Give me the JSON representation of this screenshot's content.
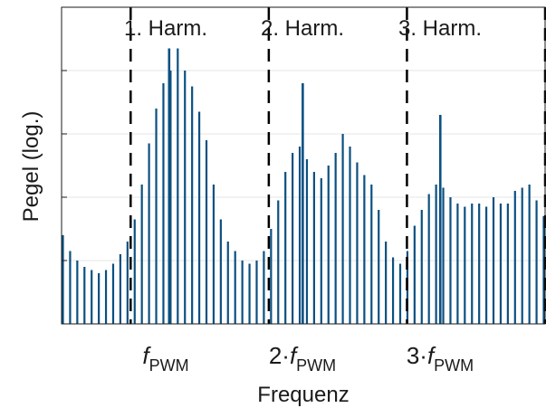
{
  "chart_data": {
    "type": "bar",
    "xlabel": "Frequenz",
    "ylabel": "Pegel (log.)",
    "ylim": [
      0,
      10
    ],
    "grid": true,
    "region_labels": [
      "1. Harm.",
      "2. Harm.",
      "3. Harm."
    ],
    "xticks": [
      {
        "prefix": "",
        "base": "f",
        "sub": "PWM"
      },
      {
        "prefix": "2·",
        "base": "f",
        "sub": "PWM"
      },
      {
        "prefix": "3·",
        "base": "f",
        "sub": "PWM"
      }
    ],
    "values": [
      2.8,
      2.3,
      2.0,
      1.8,
      1.7,
      1.6,
      1.7,
      1.9,
      2.2,
      2.6,
      3.3,
      4.4,
      5.7,
      6.8,
      7.6,
      8.0,
      8.7,
      8.0,
      7.5,
      6.7,
      5.8,
      4.4,
      3.3,
      2.6,
      2.3,
      2.0,
      1.9,
      2.0,
      2.3,
      3.0,
      3.9,
      4.8,
      5.4,
      5.6,
      5.2,
      4.8,
      4.6,
      5.0,
      5.4,
      6.0,
      5.6,
      5.1,
      4.7,
      4.4,
      3.6,
      2.6,
      2.1,
      1.9,
      2.3,
      3.1,
      3.6,
      4.1,
      4.4,
      4.3,
      4.0,
      3.8,
      3.7,
      3.8,
      3.8,
      3.7,
      4.0,
      3.8,
      3.8,
      4.2,
      4.3,
      4.4,
      3.9,
      3.4
    ],
    "spikes": [
      {
        "at": 0.2225,
        "value": 8.7
      },
      {
        "at": 0.4988,
        "value": 7.6
      },
      {
        "at": 0.7833,
        "value": 6.6
      }
    ],
    "colors": {
      "bar": "#0b5081",
      "divider": "#000000",
      "grid": "#e6e6e6",
      "axis": "#1a1a1a"
    }
  }
}
